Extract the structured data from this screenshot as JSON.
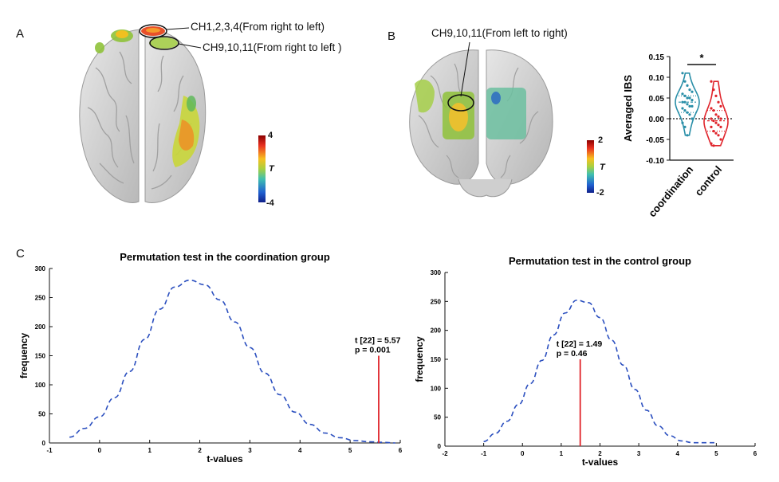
{
  "panels": {
    "a": "A",
    "b": "B",
    "c": "C"
  },
  "panel_a": {
    "callout_1": "CH1,2,3,4(From right to left)",
    "callout_2": "CH9,10,11(From right to left )",
    "colorbar": {
      "max": "4",
      "min": "-4",
      "label": "T"
    }
  },
  "panel_b": {
    "callout": "CH9,10,11(From left to right)",
    "colorbar": {
      "max": "2",
      "min": "-2",
      "label": "T"
    }
  },
  "colors": {
    "coordination": "#2a8fa8",
    "control": "#e0242b",
    "perm_curve": "#2b4fbf",
    "stat_line": "#e0242b"
  },
  "chart_data": [
    {
      "type": "violin",
      "ylabel": "Averaged IBS",
      "categories": [
        "coordination",
        "control"
      ],
      "ylim": [
        -0.1,
        0.15
      ],
      "yticks": [
        "0.15",
        "0.10",
        "0.05",
        "0.00",
        "-0.05",
        "-0.10"
      ],
      "significance": "*",
      "series": [
        {
          "name": "coordination",
          "values": [
            0.11,
            0.09,
            0.08,
            0.07,
            0.065,
            0.06,
            0.055,
            0.05,
            0.05,
            0.045,
            0.04,
            0.04,
            0.035,
            0.03,
            0.03,
            0.025,
            0.02,
            0.015,
            0.01,
            0.0,
            -0.01,
            -0.02,
            -0.04
          ]
        },
        {
          "name": "control",
          "values": [
            0.09,
            0.07,
            0.055,
            0.04,
            0.03,
            0.025,
            0.02,
            0.01,
            0.005,
            0.0,
            0.0,
            -0.005,
            -0.01,
            -0.015,
            -0.02,
            -0.02,
            -0.03,
            -0.035,
            -0.04,
            -0.05,
            -0.06,
            -0.065
          ]
        }
      ]
    },
    {
      "type": "line",
      "title": "Permutation test in the coordination group",
      "xlabel": "t-values",
      "ylabel": "frequency",
      "xlim": [
        -1,
        6
      ],
      "ylim": [
        0,
        300
      ],
      "xticks": [
        "-1",
        "0",
        "1",
        "2",
        "3",
        "4",
        "5",
        "6"
      ],
      "yticks": [
        "0",
        "50",
        "100",
        "150",
        "200",
        "250",
        "300"
      ],
      "x": [
        -0.6,
        -0.3,
        0.0,
        0.3,
        0.6,
        0.9,
        1.2,
        1.5,
        1.8,
        2.1,
        2.4,
        2.7,
        3.0,
        3.3,
        3.6,
        3.9,
        4.2,
        4.5,
        4.8,
        5.1,
        5.4,
        5.7,
        5.9
      ],
      "y": [
        10,
        25,
        45,
        78,
        123,
        178,
        230,
        268,
        280,
        272,
        246,
        208,
        164,
        120,
        83,
        53,
        32,
        17,
        9,
        4,
        2,
        1,
        0
      ],
      "marker_t": 5.57,
      "marker_height": 150,
      "annotation": [
        "t [22] = 5.57",
        "p = 0.001"
      ]
    },
    {
      "type": "line",
      "title": "Permutation test in the control group",
      "xlabel": "t-values",
      "ylabel": "frequency",
      "xlim": [
        -2,
        6
      ],
      "ylim": [
        0,
        300
      ],
      "xticks": [
        "-2",
        "-1",
        "0",
        "1",
        "2",
        "3",
        "4",
        "5",
        "6"
      ],
      "yticks": [
        "0",
        "50",
        "100",
        "150",
        "200",
        "250",
        "300"
      ],
      "x": [
        -1.0,
        -0.7,
        -0.4,
        -0.1,
        0.2,
        0.5,
        0.8,
        1.1,
        1.4,
        1.7,
        2.0,
        2.3,
        2.6,
        2.9,
        3.2,
        3.5,
        3.8,
        4.1,
        4.4,
        4.7,
        5.0
      ],
      "y": [
        8,
        22,
        43,
        72,
        108,
        148,
        192,
        230,
        252,
        248,
        222,
        183,
        140,
        98,
        62,
        35,
        18,
        9,
        6,
        6,
        6
      ],
      "marker_t": 1.49,
      "marker_height": 150,
      "annotation": [
        "t [22] = 1.49",
        "p = 0.46"
      ]
    }
  ]
}
